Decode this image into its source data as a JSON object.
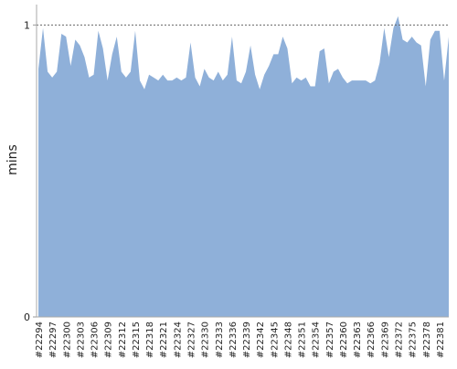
{
  "chart_data": {
    "type": "area",
    "y_label": "mins",
    "color": "#8fb0d9",
    "ylim": [
      0,
      1.07
    ],
    "yticks": [
      0,
      1
    ],
    "grid": true,
    "categories": [
      "#22294",
      null,
      null,
      "#22297",
      null,
      null,
      "#22300",
      null,
      null,
      "#22303",
      null,
      null,
      "#22306",
      null,
      null,
      "#22309",
      null,
      null,
      "#22312",
      null,
      null,
      "#22315",
      null,
      null,
      "#22318",
      null,
      null,
      "#22321",
      null,
      null,
      "#22324",
      null,
      null,
      "#22327",
      null,
      null,
      "#22330",
      null,
      null,
      "#22333",
      null,
      null,
      "#22336",
      null,
      null,
      "#22339",
      null,
      null,
      "#22342",
      null,
      null,
      "#22345",
      null,
      null,
      "#22348",
      null,
      null,
      "#22351",
      null,
      null,
      "#22354",
      null,
      null,
      "#22357",
      null,
      null,
      "#22360",
      null,
      null,
      "#22363",
      null,
      null,
      "#22366",
      null,
      null,
      "#22369",
      null,
      null,
      "#22372",
      null,
      null,
      "#22375",
      null,
      null,
      "#22378",
      null,
      null,
      "#22381",
      null,
      null
    ],
    "values": [
      0.85,
      0.99,
      0.84,
      0.82,
      0.84,
      0.97,
      0.96,
      0.86,
      0.95,
      0.93,
      0.89,
      0.82,
      0.83,
      0.98,
      0.92,
      0.81,
      0.9,
      0.96,
      0.84,
      0.82,
      0.84,
      0.98,
      0.81,
      0.78,
      0.83,
      0.82,
      0.81,
      0.83,
      0.81,
      0.81,
      0.82,
      0.81,
      0.82,
      0.94,
      0.82,
      0.79,
      0.85,
      0.82,
      0.81,
      0.84,
      0.81,
      0.83,
      0.96,
      0.81,
      0.8,
      0.84,
      0.93,
      0.83,
      0.78,
      0.83,
      0.86,
      0.9,
      0.9,
      0.96,
      0.92,
      0.8,
      0.82,
      0.81,
      0.82,
      0.79,
      0.79,
      0.91,
      0.92,
      0.8,
      0.84,
      0.85,
      0.82,
      0.8,
      0.81,
      0.81,
      0.81,
      0.81,
      0.8,
      0.81,
      0.87,
      0.99,
      0.89,
      0.99,
      1.03,
      0.95,
      0.94,
      0.96,
      0.94,
      0.93,
      0.79,
      0.95,
      0.98,
      0.98,
      0.81,
      0.96
    ]
  }
}
